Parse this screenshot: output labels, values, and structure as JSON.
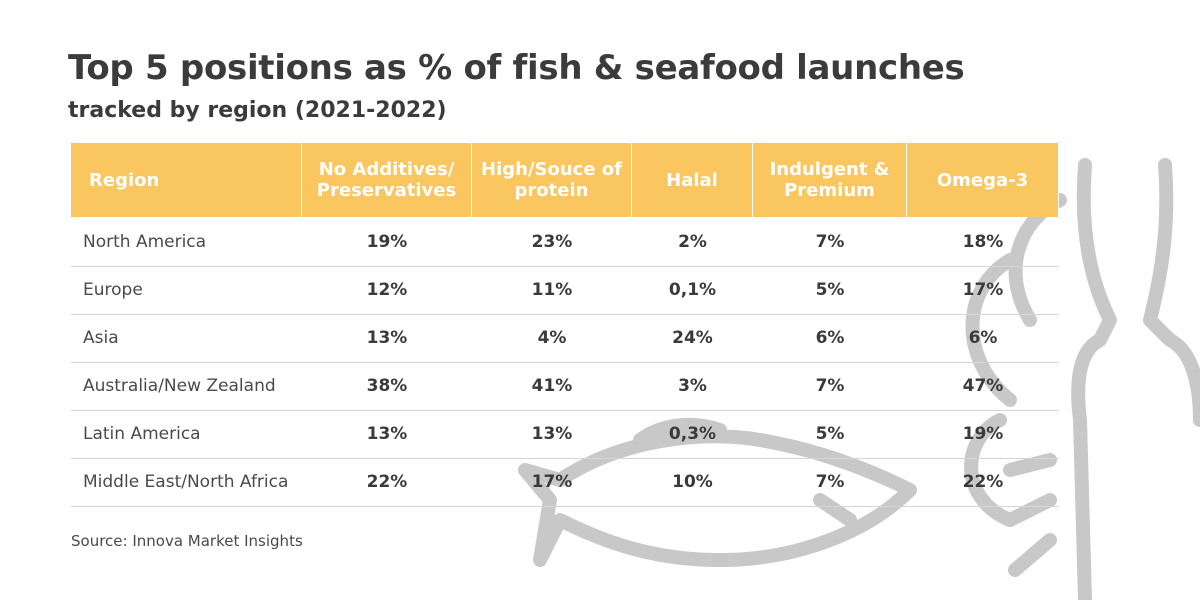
{
  "header": {
    "title": "Top 5 positions as % of fish & seafood launches",
    "subtitle": "tracked by region (2021-2022)"
  },
  "table": {
    "columns": [
      "Region",
      "No Additives/ Preservatives",
      "High/Souce of protein",
      "Halal",
      "Indulgent & Premium",
      "Omega-3"
    ],
    "rows": [
      [
        "North America",
        "19%",
        "23%",
        "2%",
        "7%",
        "18%"
      ],
      [
        "Europe",
        "12%",
        "11%",
        "0,1%",
        "5%",
        "17%"
      ],
      [
        "Asia",
        "13%",
        "4%",
        "24%",
        "6%",
        "6%"
      ],
      [
        "Australia/New Zealand",
        "38%",
        "41%",
        "3%",
        "7%",
        "47%"
      ],
      [
        "Latin America",
        "13%",
        "13%",
        "0,3%",
        "5%",
        "19%"
      ],
      [
        "Middle East/North Africa",
        "22%",
        "17%",
        "10%",
        "7%",
        "22%"
      ]
    ]
  },
  "footer": {
    "source": "Source: Innova Market Insights"
  }
}
